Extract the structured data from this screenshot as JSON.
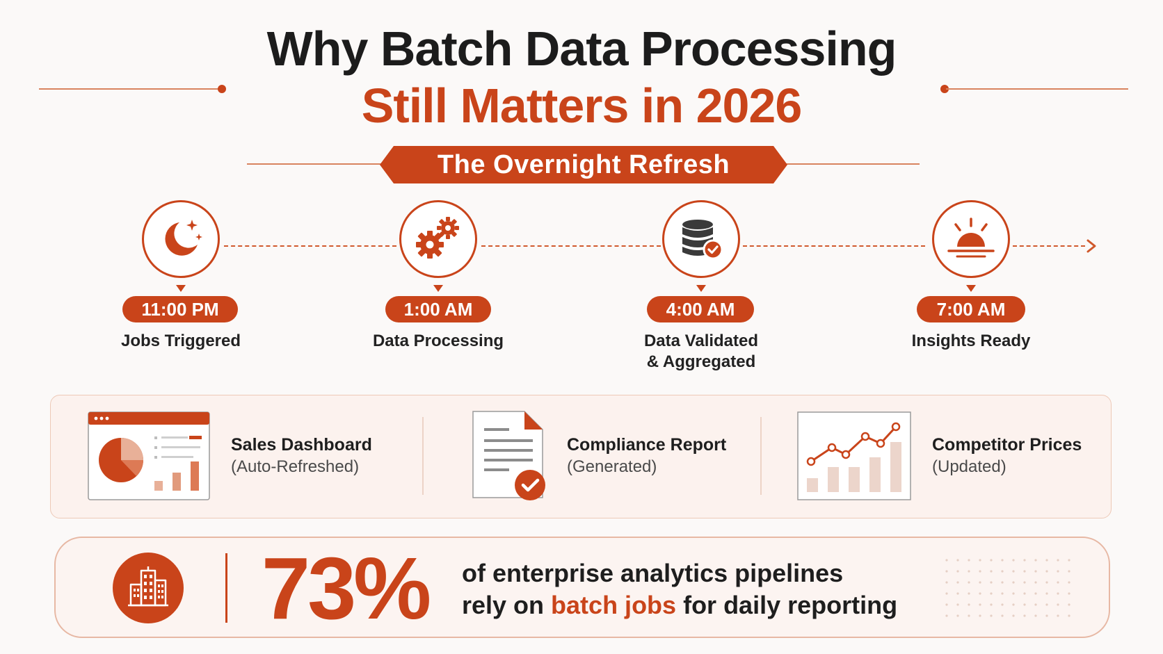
{
  "title": {
    "line1": "Why Batch Data Processing",
    "line2": "Still Matters in 2026"
  },
  "banner": {
    "label": "The Overnight Refresh"
  },
  "timeline": [
    {
      "time": "11:00 PM",
      "label_line1": "Jobs Triggered",
      "label_line2": "",
      "icon": "moon-stars-icon"
    },
    {
      "time": "1:00 AM",
      "label_line1": "Data Processing",
      "label_line2": "",
      "icon": "gears-icon"
    },
    {
      "time": "4:00 AM",
      "label_line1": "Data Validated",
      "label_line2": "& Aggregated",
      "icon": "database-check-icon"
    },
    {
      "time": "7:00 AM",
      "label_line1": "Insights Ready",
      "label_line2": "",
      "icon": "sunrise-icon"
    }
  ],
  "outputs": [
    {
      "title": "Sales Dashboard",
      "subtitle": "(Auto-Refreshed)",
      "icon": "dashboard-icon"
    },
    {
      "title": "Compliance Report",
      "subtitle": "(Generated)",
      "icon": "document-check-icon"
    },
    {
      "title": "Competitor Prices",
      "subtitle": "(Updated)",
      "icon": "line-chart-icon"
    }
  ],
  "stat": {
    "value": "73%",
    "line1": "of enterprise analytics pipelines",
    "line2_prefix": "rely on ",
    "line2_highlight": "batch jobs",
    "line2_suffix": " for daily reporting",
    "icon": "buildings-icon"
  },
  "colors": {
    "accent": "#c9441a",
    "accent_light": "#e8a88c",
    "background": "#fbf9f8",
    "text": "#1e1e1e"
  }
}
